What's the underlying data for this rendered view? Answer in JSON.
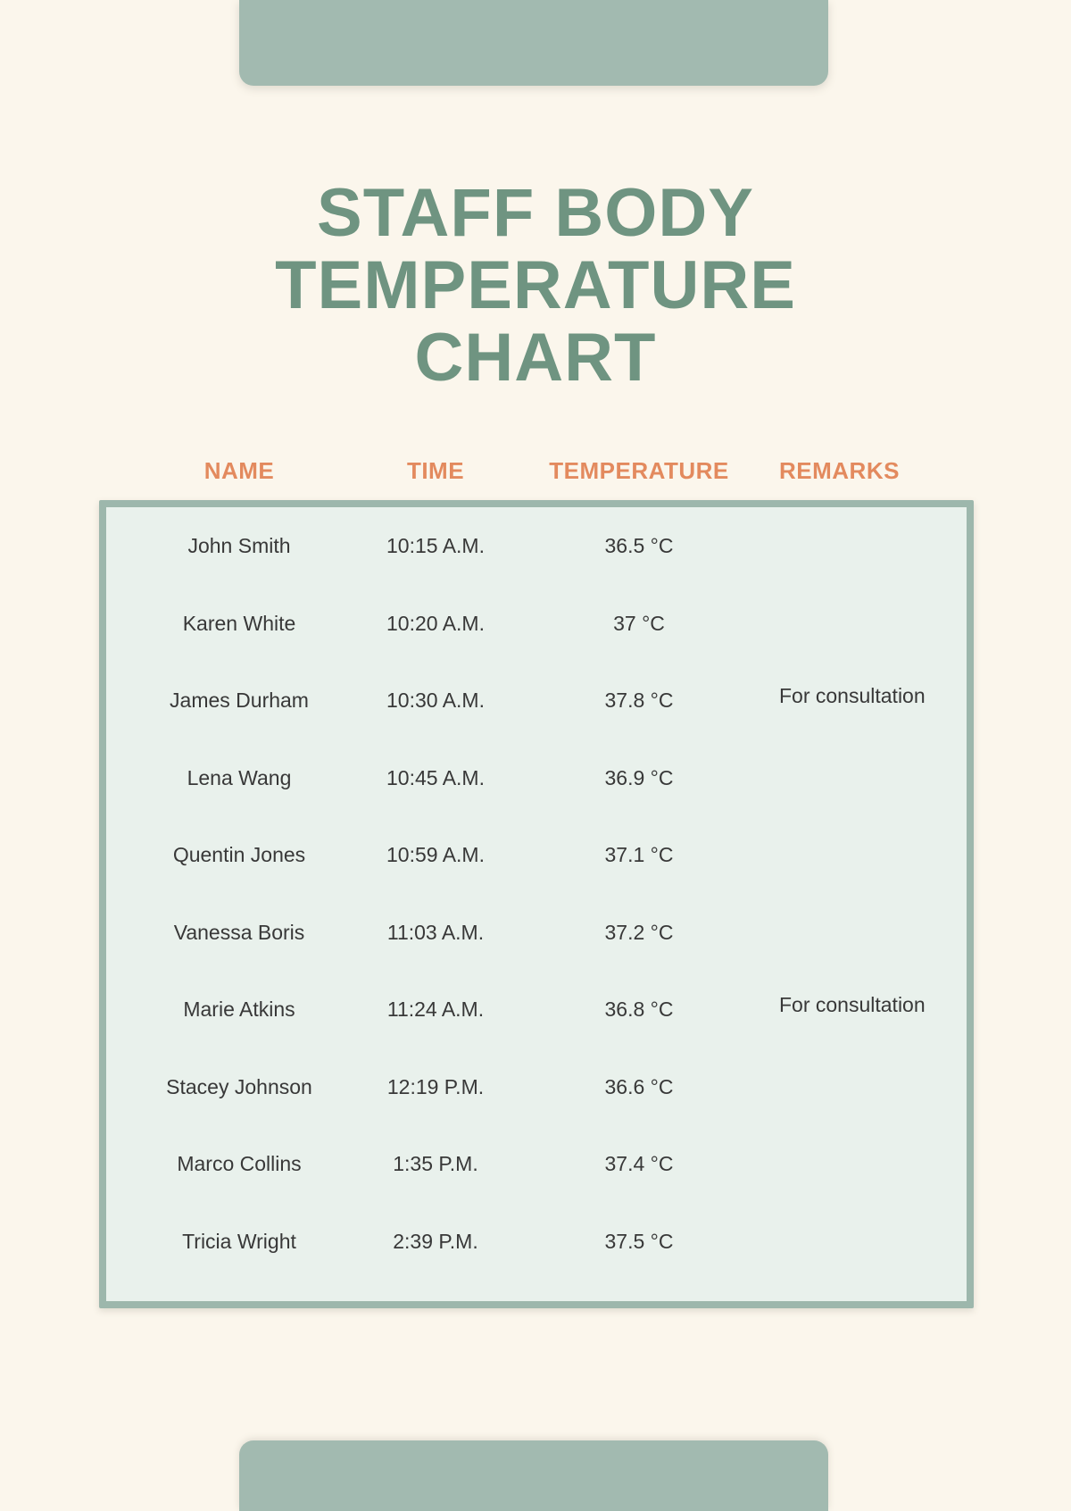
{
  "title": {
    "lines": [
      "STAFF BODY",
      "TEMPERATURE",
      "CHART"
    ]
  },
  "table": {
    "headers": [
      "NAME",
      "TIME",
      "TEMPERATURE",
      "REMARKS"
    ],
    "rows": [
      {
        "name": "John Smith",
        "time": "10:15 A.M.",
        "temperature": "36.5 °C",
        "remarks": ""
      },
      {
        "name": "Karen White",
        "time": "10:20 A.M.",
        "temperature": "37 °C",
        "remarks": ""
      },
      {
        "name": "James Durham",
        "time": "10:30 A.M.",
        "temperature": "37.8 °C",
        "remarks": "For consultation"
      },
      {
        "name": "Lena Wang",
        "time": "10:45 A.M.",
        "temperature": "36.9 °C",
        "remarks": ""
      },
      {
        "name": "Quentin Jones",
        "time": "10:59 A.M.",
        "temperature": "37.1 °C",
        "remarks": ""
      },
      {
        "name": "Vanessa Boris",
        "time": "11:03 A.M.",
        "temperature": "37.2 °C",
        "remarks": ""
      },
      {
        "name": "Marie Atkins",
        "time": "11:24 A.M.",
        "temperature": "36.8 °C",
        "remarks": "For consultation"
      },
      {
        "name": "Stacey Johnson",
        "time": "12:19 P.M.",
        "temperature": "36.6 °C",
        "remarks": ""
      },
      {
        "name": "Marco Collins",
        "time": "1:35 P.M.",
        "temperature": "37.4 °C",
        "remarks": ""
      },
      {
        "name": "Tricia Wright",
        "time": "2:39 P.M.",
        "temperature": "37.5 °C",
        "remarks": ""
      }
    ]
  },
  "colors": {
    "background": "#FBF6EC",
    "accent_sage": "#A2BAB0",
    "panel_fill": "#E9F1EC",
    "panel_border": "#9DB7AC",
    "title_green": "#6F9481",
    "header_orange": "#E38A5E",
    "body_text": "#383838"
  }
}
